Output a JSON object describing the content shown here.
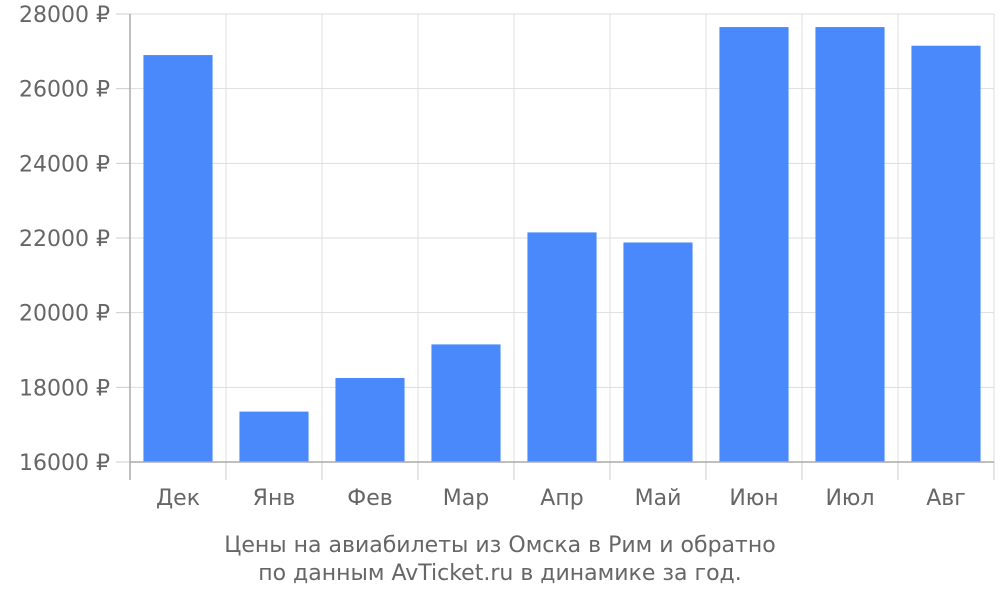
{
  "chart_data": {
    "type": "bar",
    "categories": [
      "Дек",
      "Янв",
      "Фев",
      "Мар",
      "Апр",
      "Май",
      "Июн",
      "Июл",
      "Авг"
    ],
    "values": [
      26900,
      17350,
      18250,
      19150,
      22150,
      21880,
      27650,
      27650,
      27150
    ],
    "ylim": [
      16000,
      28000
    ],
    "yticks": [
      16000,
      18000,
      20000,
      22000,
      24000,
      26000,
      28000
    ],
    "y_tick_labels": [
      "16000 ₽",
      "18000 ₽",
      "20000 ₽",
      "22000 ₽",
      "24000 ₽",
      "26000 ₽",
      "28000 ₽"
    ],
    "grid": true,
    "title": "",
    "xlabel": "",
    "ylabel": "",
    "bar_color": "#4a89fb",
    "grid_color": "#dddddd",
    "axis_color": "#cccccc",
    "text_color": "#666666"
  },
  "caption": {
    "line1": "Цены на авиабилеты из Омска в Рим и обратно",
    "line2": "по данным AvTicket.ru в динамике за год."
  }
}
